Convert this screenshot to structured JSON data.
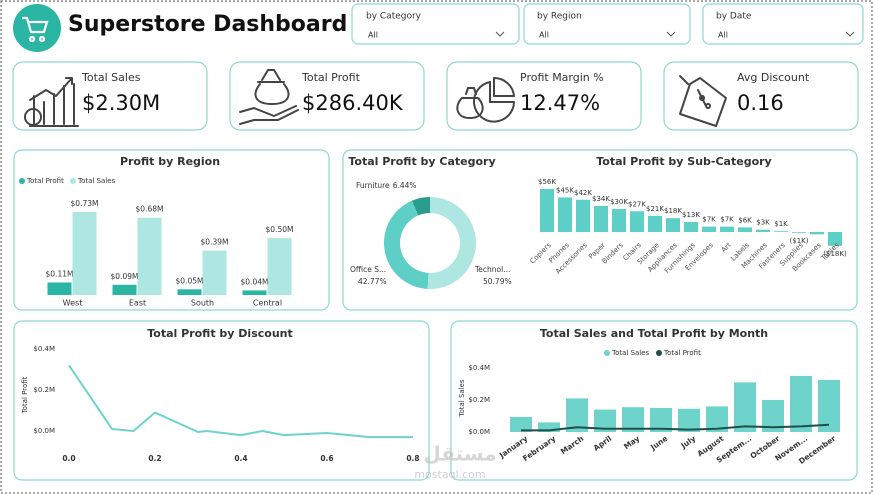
{
  "header": {
    "title": "Superstore Dashboard"
  },
  "filters": [
    {
      "label": "by Category",
      "value": "All"
    },
    {
      "label": "by Region",
      "value": "All"
    },
    {
      "label": "by Date",
      "value": "All"
    }
  ],
  "kpis": [
    {
      "label": "Total Sales",
      "value": "$2.30M"
    },
    {
      "label": "Total Profit",
      "value": "$286.40K"
    },
    {
      "label": "Profit Margin %",
      "value": "12.47%"
    },
    {
      "label": "Avg Discount",
      "value": "0.16"
    }
  ],
  "chart_data": [
    {
      "type": "grouped-bar",
      "title": "Profit by Region",
      "categories": [
        "West",
        "East",
        "South",
        "Central"
      ],
      "series": [
        {
          "name": "Total Profit",
          "color": "#2ab5a5",
          "values": [
            0.11,
            0.09,
            0.05,
            0.04
          ],
          "value_labels": [
            "$0.11M",
            "$0.09M",
            "$0.05M",
            "$0.04M"
          ]
        },
        {
          "name": "Total Sales",
          "color": "#aee6e2",
          "values": [
            0.73,
            0.68,
            0.39,
            0.5
          ],
          "value_labels": [
            "$0.73M",
            "$0.68M",
            "$0.39M",
            "$0.50M"
          ]
        }
      ]
    },
    {
      "type": "donut",
      "title": "Total Profit by Category",
      "categories": [
        "Furniture",
        "Office S...",
        "Technol..."
      ],
      "values": [
        6.44,
        42.77,
        50.79
      ],
      "value_labels": [
        "6.44%",
        "42.77%",
        "50.79%"
      ],
      "colors": [
        "#2a9d8f",
        "#5ecfc6",
        "#aee6e2"
      ]
    },
    {
      "type": "bar",
      "title": "Total Profit by Sub-Category",
      "color": "#5ecfc6",
      "categories": [
        "Copiers",
        "Phones",
        "Accessories",
        "Paper",
        "Binders",
        "Chairs",
        "Storage",
        "Appliances",
        "Furnishings",
        "Envelopes",
        "Art",
        "Labels",
        "Machines",
        "Fasteners",
        "Supplies",
        "Bookcases",
        "Tables"
      ],
      "values": [
        56,
        45,
        42,
        34,
        30,
        27,
        21,
        18,
        13,
        7,
        7,
        6,
        3,
        1,
        -1,
        -3,
        -18
      ],
      "value_labels": [
        "$56K",
        "$45K",
        "$42K",
        "$34K",
        "$30K",
        "$27K",
        "$21K",
        "$18K",
        "$13K",
        "$7K",
        "$7K",
        "$6K",
        "$3K",
        "$1K",
        "($1K)",
        null,
        "($18K)"
      ]
    },
    {
      "type": "line",
      "title": "Total Profit by Discount",
      "y_label": "Total Profit",
      "color": "#6dd3cb",
      "x": [
        0,
        0.1,
        0.15,
        0.2,
        0.3,
        0.32,
        0.4,
        0.45,
        0.5,
        0.6,
        0.7,
        0.8
      ],
      "values": [
        0.32,
        0.01,
        0.0,
        0.09,
        -0.005,
        0.0,
        -0.02,
        0.0,
        -0.02,
        -0.01,
        -0.03,
        -0.03
      ],
      "xlim": [
        -0.02,
        0.82
      ],
      "xticks": [
        {
          "value": 0,
          "label": "0.0"
        },
        0.2,
        0.4,
        0.6,
        0.8
      ],
      "ylim": [
        -0.05,
        0.42
      ],
      "yticks": [
        {
          "value": 0,
          "label": "$0.0M"
        },
        {
          "value": 0.2,
          "label": "$0.2M"
        },
        {
          "value": 0.4,
          "label": "$0.4M"
        }
      ]
    },
    {
      "type": "combo",
      "title": "Total Sales and Total Profit by Month",
      "y_label": "Total Sales",
      "categories": [
        "January",
        "February",
        "March",
        "April",
        "May",
        "June",
        "July",
        "August",
        "Septem...",
        "October",
        "Novem...",
        "December"
      ],
      "series": [
        {
          "name": "Total Sales",
          "color": "#6dd3cb",
          "type": "bar",
          "values": [
            0.094,
            0.06,
            0.21,
            0.14,
            0.155,
            0.15,
            0.145,
            0.16,
            0.31,
            0.2,
            0.35,
            0.325
          ]
        },
        {
          "name": "Total Profit",
          "color": "#1e4f4a",
          "type": "line",
          "values": [
            0.01,
            0.01,
            0.03,
            0.02,
            0.02,
            0.02,
            0.015,
            0.02,
            0.035,
            0.03,
            0.035,
            0.045
          ]
        }
      ],
      "ylim": [
        0,
        0.42
      ],
      "yticks": [
        {
          "value": 0,
          "label": "$0.0M"
        },
        {
          "value": 0.2,
          "label": "$0.2M"
        },
        {
          "value": 0.4,
          "label": "$0.4M"
        }
      ]
    }
  ],
  "watermark": {
    "text": "مستقل",
    "url": "mostaql.com"
  }
}
